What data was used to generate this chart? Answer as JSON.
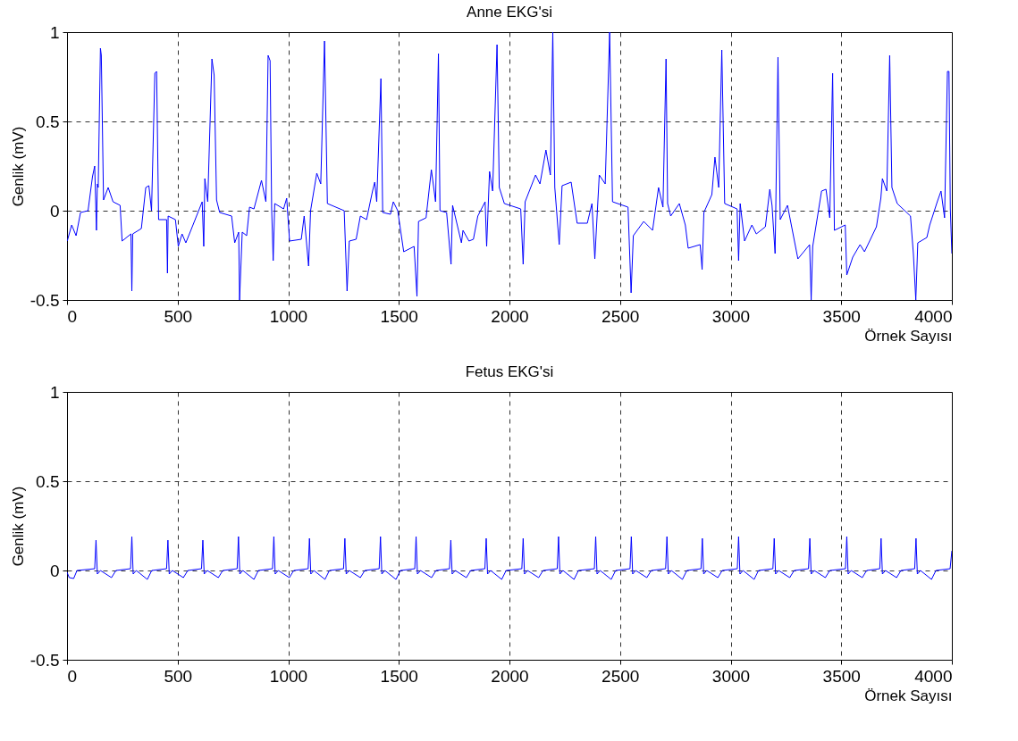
{
  "chart_data": [
    {
      "type": "line",
      "title": "Anne EKG'si",
      "xlabel": "Örnek Sayısı",
      "ylabel": "Genlik (mV)",
      "xlim": [
        0,
        4000
      ],
      "ylim": [
        -0.5,
        1
      ],
      "xticks": [
        0,
        500,
        1000,
        1500,
        2000,
        2500,
        3000,
        3500,
        4000
      ],
      "yticks": [
        -0.5,
        0,
        0.5,
        1
      ],
      "grid": true,
      "series": [
        {
          "color": "#0000ff",
          "x": [
            1,
            21,
            41,
            61,
            95,
            115,
            125,
            133,
            137,
            141,
            151,
            155,
            165,
            186,
            208,
            240,
            249,
            289,
            293,
            297,
            336,
            356,
            370,
            382,
            397,
            405,
            414,
            450,
            454,
            457,
            490,
            503,
            520,
            537,
            563,
            611,
            618,
            623,
            636,
            655,
            665,
            676,
            690,
            744,
            758,
            776,
            780,
            792,
            812,
            825,
            845,
            879,
            899,
            909,
            918,
            925,
            932,
            939,
            979,
            993,
            1006,
            1059,
            1072,
            1092,
            1101,
            1129,
            1147,
            1164,
            1177,
            1253,
            1266,
            1276,
            1307,
            1326,
            1354,
            1381,
            1391,
            1400,
            1419,
            1427,
            1462,
            1475,
            1495,
            1522,
            1569,
            1582,
            1589,
            1623,
            1647,
            1666,
            1679,
            1686,
            1716,
            1736,
            1743,
            1783,
            1790,
            1817,
            1837,
            1857,
            1890,
            1897,
            1910,
            1924,
            1944,
            1954,
            1977,
            2051,
            2062,
            2071,
            2118,
            2138,
            2165,
            2185,
            2196,
            2205,
            2225,
            2238,
            2279,
            2306,
            2352,
            2373,
            2386,
            2406,
            2433,
            2453,
            2466,
            2536,
            2550,
            2560,
            2607,
            2647,
            2674,
            2694,
            2708,
            2715,
            2729,
            2768,
            2795,
            2808,
            2862,
            2871,
            2879,
            2915,
            2929,
            2946,
            2960,
            2973,
            3029,
            3036,
            3043,
            3063,
            3096,
            3116,
            3157,
            3177,
            3187,
            3201,
            3214,
            3224,
            3257,
            3304,
            3357,
            3364,
            3371,
            3411,
            3431,
            3448,
            3461,
            3469,
            3518,
            3525,
            3552,
            3585,
            3605,
            3659,
            3679,
            3686,
            3706,
            3719,
            3729,
            3753,
            3813,
            3826,
            3837,
            3846,
            3887,
            3900,
            3934,
            3951,
            3967,
            3980,
            3987,
            3993,
            4000
          ],
          "values": [
            -0.17,
            -0.08,
            -0.14,
            -0.01,
            0.0,
            0.19,
            0.25,
            -0.11,
            0.15,
            0.13,
            0.91,
            0.87,
            0.06,
            0.13,
            0.05,
            0.03,
            -0.17,
            -0.13,
            -0.45,
            -0.13,
            -0.1,
            0.13,
            0.14,
            0.0,
            0.77,
            0.78,
            -0.05,
            -0.05,
            -0.35,
            -0.03,
            -0.05,
            -0.2,
            -0.13,
            -0.18,
            -0.1,
            0.05,
            -0.2,
            0.18,
            0.05,
            0.85,
            0.76,
            0.06,
            -0.01,
            -0.03,
            -0.18,
            -0.12,
            -0.5,
            -0.12,
            -0.14,
            0.02,
            0.01,
            0.17,
            0.05,
            0.87,
            0.84,
            0.01,
            -0.28,
            0.04,
            0.01,
            0.07,
            -0.17,
            -0.16,
            -0.03,
            -0.31,
            0.0,
            0.21,
            0.15,
            0.95,
            0.04,
            0.0,
            -0.45,
            -0.17,
            -0.16,
            -0.03,
            -0.05,
            0.11,
            0.16,
            0.05,
            0.74,
            -0.01,
            -0.02,
            0.05,
            0.0,
            -0.23,
            -0.2,
            -0.48,
            -0.06,
            -0.04,
            0.23,
            0.05,
            0.88,
            0.0,
            -0.01,
            -0.3,
            0.03,
            -0.18,
            -0.11,
            -0.17,
            -0.16,
            -0.03,
            0.05,
            -0.2,
            0.22,
            0.11,
            0.93,
            0.13,
            0.04,
            0.01,
            -0.3,
            0.05,
            0.2,
            0.15,
            0.34,
            0.2,
            1.0,
            0.13,
            -0.19,
            0.14,
            0.16,
            -0.07,
            -0.07,
            0.04,
            -0.27,
            0.2,
            0.15,
            1.0,
            0.05,
            0.02,
            -0.46,
            -0.14,
            -0.06,
            -0.11,
            0.13,
            0.02,
            0.85,
            0.04,
            -0.03,
            0.04,
            -0.08,
            -0.21,
            -0.19,
            -0.33,
            -0.01,
            0.09,
            0.3,
            0.13,
            0.9,
            0.04,
            0.01,
            -0.28,
            0.04,
            -0.17,
            -0.08,
            -0.13,
            -0.09,
            0.12,
            0.03,
            -0.24,
            0.86,
            -0.05,
            0.03,
            -0.27,
            -0.19,
            -0.5,
            -0.2,
            0.11,
            0.12,
            -0.04,
            0.77,
            -0.11,
            -0.08,
            -0.36,
            -0.26,
            -0.19,
            -0.23,
            -0.09,
            0.07,
            0.18,
            0.11,
            0.87,
            0.13,
            0.04,
            -0.03,
            -0.24,
            -0.5,
            -0.18,
            -0.15,
            -0.08,
            0.05,
            0.11,
            -0.04,
            0.78,
            0.78,
            0.01,
            -0.24
          ]
        }
      ]
    },
    {
      "type": "line",
      "title": "Fetus EKG'si",
      "xlabel": "Örnek Sayısı",
      "ylabel": "Genlik (mV)",
      "xlim": [
        0,
        4000
      ],
      "ylim": [
        -0.5,
        1
      ],
      "xticks": [
        0,
        500,
        1000,
        1500,
        2000,
        2500,
        3000,
        3500,
        4000
      ],
      "yticks": [
        -0.5,
        0,
        0.5,
        1
      ],
      "grid": true,
      "series": [
        {
          "color": "#0000ff",
          "x": [
            0,
            10,
            30,
            45,
            125,
            131,
            137,
            151,
            201,
            221,
            287,
            293,
            299,
            313,
            363,
            383,
            450,
            456,
            462,
            476,
            526,
            546,
            608,
            614,
            620,
            634,
            684,
            704,
            769,
            775,
            781,
            795,
            845,
            865,
            929,
            935,
            941,
            955,
            1005,
            1025,
            1090,
            1096,
            1102,
            1116,
            1166,
            1186,
            1250,
            1256,
            1262,
            1276,
            1326,
            1346,
            1411,
            1417,
            1423,
            1437,
            1487,
            1507,
            1572,
            1578,
            1584,
            1598,
            1648,
            1668,
            1729,
            1735,
            1741,
            1755,
            1805,
            1825,
            1889,
            1895,
            1901,
            1915,
            1965,
            1985,
            2056,
            2062,
            2068,
            2082,
            2132,
            2152,
            2216,
            2222,
            2228,
            2242,
            2292,
            2312,
            2384,
            2390,
            2396,
            2410,
            2460,
            2480,
            2545,
            2551,
            2557,
            2571,
            2621,
            2641,
            2706,
            2712,
            2718,
            2732,
            2782,
            2802,
            2866,
            2872,
            2878,
            2892,
            2942,
            2962,
            3030,
            3036,
            3042,
            3056,
            3106,
            3126,
            3191,
            3197,
            3203,
            3217,
            3267,
            3287,
            3352,
            3358,
            3364,
            3378,
            3428,
            3448,
            3519,
            3525,
            3531,
            3545,
            3595,
            3615,
            3674,
            3680,
            3686,
            3700,
            3750,
            3770,
            3832,
            3838,
            3844,
            3858,
            3908,
            3928,
            3992,
            4000
          ],
          "values": [
            -0.01,
            -0.04,
            -0.045,
            0.0,
            0.01,
            0.17,
            -0.02,
            0.0,
            -0.04,
            0.0,
            0.01,
            0.19,
            -0.02,
            0.0,
            -0.05,
            0.0,
            0.01,
            0.17,
            -0.02,
            0.0,
            -0.04,
            0.0,
            0.01,
            0.17,
            -0.02,
            0.0,
            -0.04,
            0.0,
            0.01,
            0.19,
            -0.02,
            0.0,
            -0.05,
            0.0,
            0.01,
            0.19,
            -0.02,
            0.0,
            -0.04,
            0.0,
            0.01,
            0.18,
            -0.02,
            0.0,
            -0.05,
            0.0,
            0.01,
            0.18,
            -0.02,
            0.0,
            -0.04,
            0.0,
            0.01,
            0.19,
            -0.02,
            0.0,
            -0.05,
            0.0,
            0.01,
            0.19,
            -0.02,
            0.0,
            -0.04,
            0.0,
            0.01,
            0.17,
            -0.02,
            0.0,
            -0.04,
            0.0,
            0.01,
            0.18,
            -0.02,
            0.0,
            -0.05,
            0.0,
            0.01,
            0.18,
            -0.02,
            0.0,
            -0.04,
            0.0,
            0.01,
            0.19,
            -0.02,
            0.0,
            -0.05,
            0.0,
            0.01,
            0.19,
            -0.02,
            0.0,
            -0.05,
            0.0,
            0.01,
            0.19,
            -0.02,
            0.0,
            -0.04,
            0.0,
            0.01,
            0.19,
            -0.02,
            0.0,
            -0.05,
            0.0,
            0.01,
            0.18,
            -0.02,
            0.0,
            -0.04,
            0.0,
            0.01,
            0.19,
            -0.02,
            0.0,
            -0.05,
            0.0,
            0.01,
            0.18,
            -0.02,
            0.0,
            -0.04,
            0.0,
            0.01,
            0.18,
            -0.02,
            0.0,
            -0.04,
            0.0,
            0.01,
            0.19,
            -0.02,
            0.0,
            -0.04,
            0.0,
            0.01,
            0.18,
            -0.02,
            0.0,
            -0.04,
            0.0,
            0.01,
            0.18,
            -0.02,
            0.0,
            -0.05,
            0.0,
            0.01,
            0.11
          ]
        }
      ]
    }
  ]
}
